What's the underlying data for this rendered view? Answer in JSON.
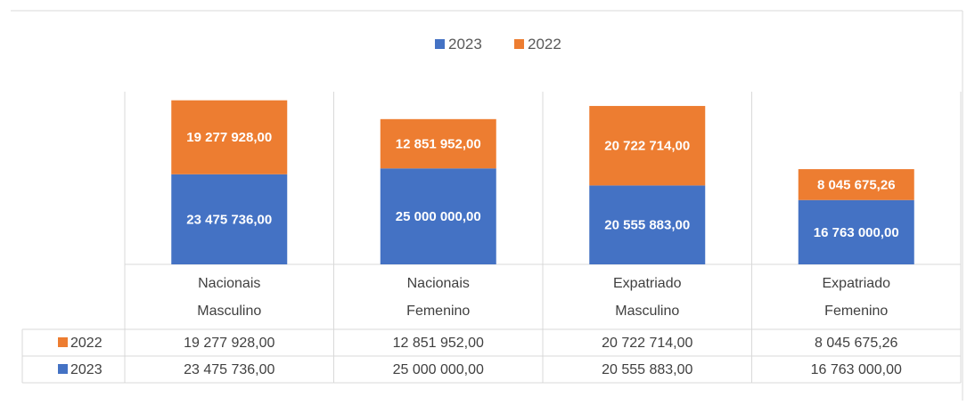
{
  "chart_data": {
    "type": "bar",
    "stacked": true,
    "categories": [
      "Nacionais Masculino",
      "Nacionais Femenino",
      "Expatriado Masculino",
      "Expatriado Femenino"
    ],
    "series": [
      {
        "name": "2023",
        "color": "#4472c4",
        "values": [
          23475736,
          25000000,
          20555883,
          16763000
        ],
        "value_labels": [
          "23 475 736,00",
          "25 000 000,00",
          "20 555 883,00",
          "16 763 000,00"
        ]
      },
      {
        "name": "2022",
        "color": "#ed7d31",
        "values": [
          19277928,
          12851952,
          20722714,
          8045675.26
        ],
        "value_labels": [
          "19 277 928,00",
          "12 851 952,00",
          "20 722 714,00",
          "8 045 675,26"
        ]
      }
    ],
    "ylim": [
      0,
      45000000
    ],
    "legend": "top",
    "data_table": true
  }
}
